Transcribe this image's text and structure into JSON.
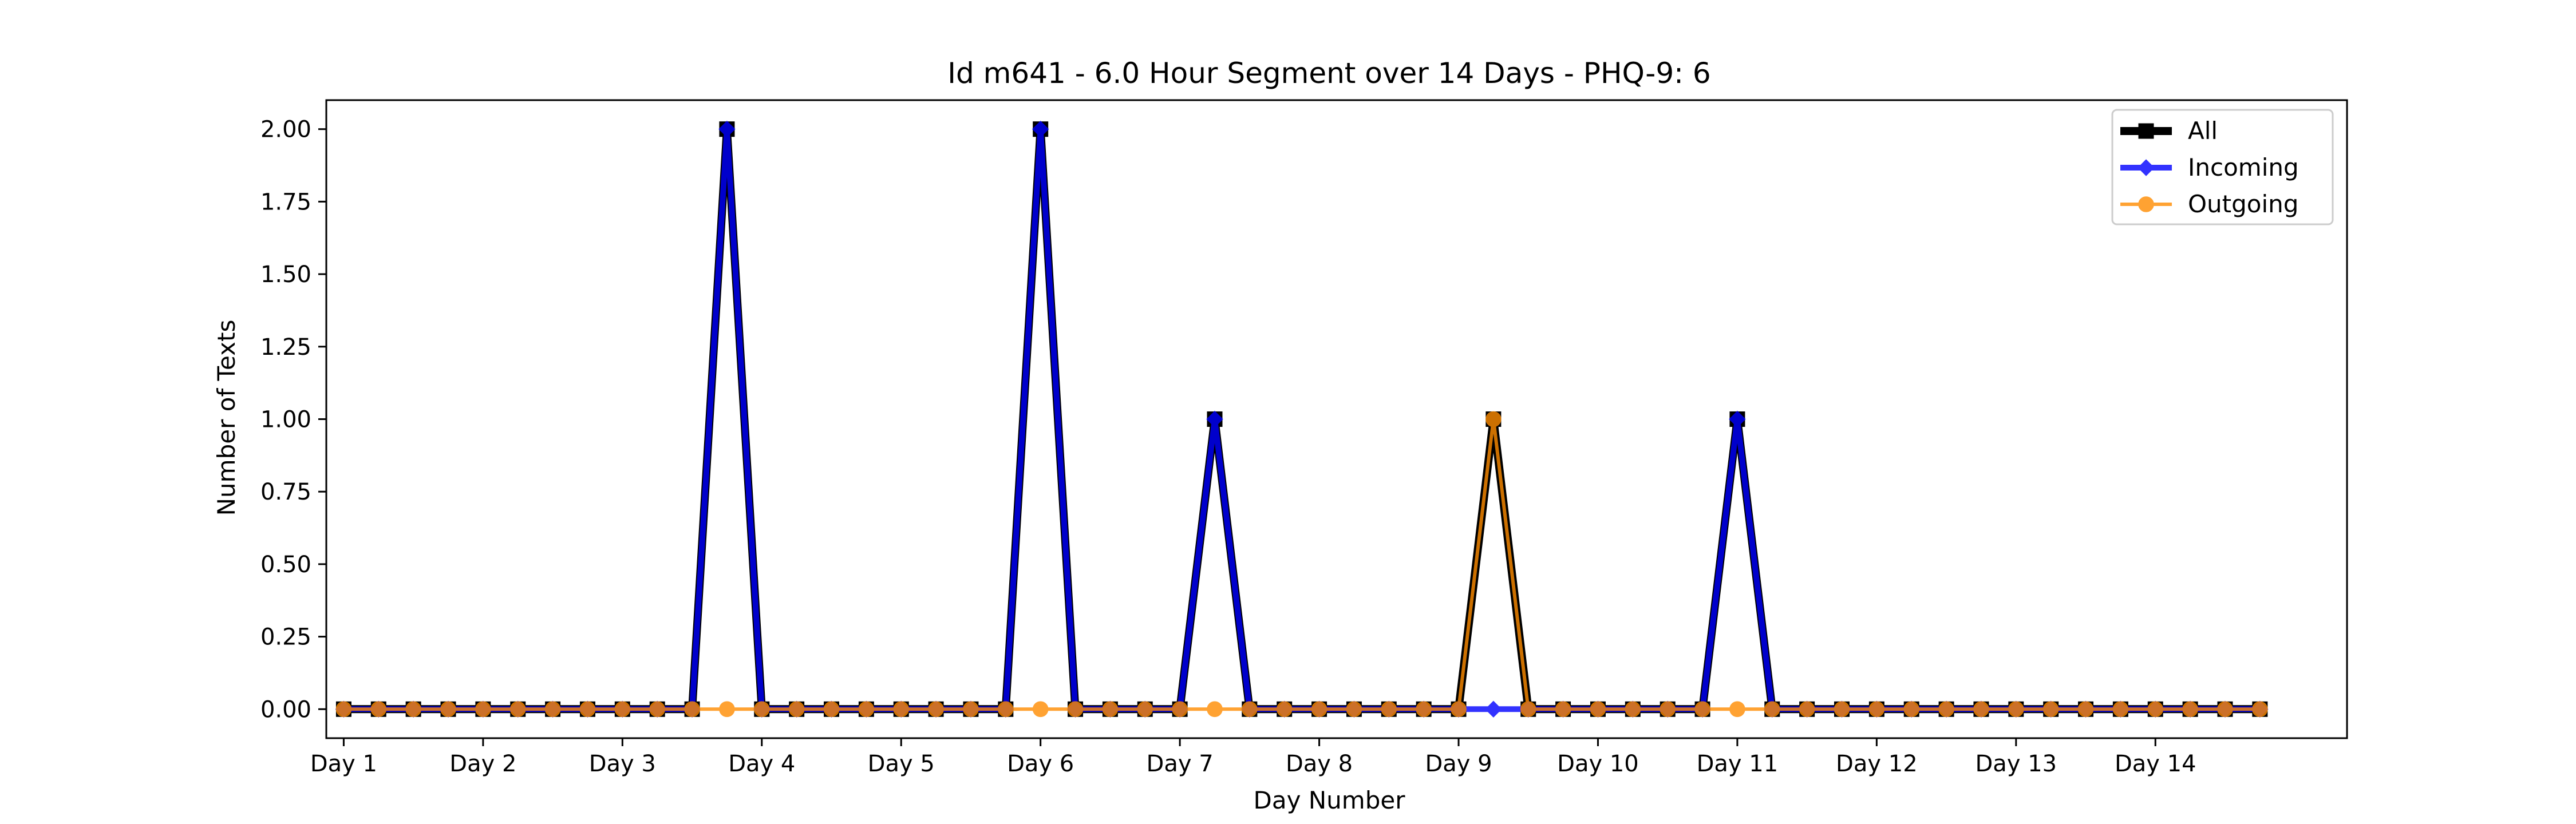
{
  "chart_data": {
    "type": "line",
    "title": "Id m641 - 6.0 Hour Segment over 14 Days - PHQ-9: 6",
    "xlabel": "Day Number",
    "ylabel": "Number of Texts",
    "ylim": [
      -0.1,
      2.1
    ],
    "yticks": [
      "0.00",
      "0.25",
      "0.50",
      "0.75",
      "1.00",
      "1.25",
      "1.50",
      "1.75",
      "2.00"
    ],
    "xlim": [
      -0.5,
      57.5
    ],
    "x_tick_positions": [
      0,
      4,
      8,
      12,
      16,
      20,
      24,
      28,
      32,
      36,
      40,
      44,
      48,
      52
    ],
    "x_tick_labels": [
      "Day 1",
      "Day 2",
      "Day 3",
      "Day 4",
      "Day 5",
      "Day 6",
      "Day 7",
      "Day 8",
      "Day 9",
      "Day 10",
      "Day 11",
      "Day 12",
      "Day 13",
      "Day 14"
    ],
    "x": [
      0,
      1,
      2,
      3,
      4,
      5,
      6,
      7,
      8,
      9,
      10,
      11,
      12,
      13,
      14,
      15,
      16,
      17,
      18,
      19,
      20,
      21,
      22,
      23,
      24,
      25,
      26,
      27,
      28,
      29,
      30,
      31,
      32,
      33,
      34,
      35,
      36,
      37,
      38,
      39,
      40,
      41,
      42,
      43,
      44,
      45,
      46,
      47,
      48,
      49,
      50,
      51,
      52,
      53,
      54,
      55
    ],
    "legend_position": "top-right",
    "grid": false,
    "series": [
      {
        "name": "All",
        "color": "#000000",
        "marker": "square",
        "values": [
          0,
          0,
          0,
          0,
          0,
          0,
          0,
          0,
          0,
          0,
          0,
          2,
          0,
          0,
          0,
          0,
          0,
          0,
          0,
          0,
          2,
          0,
          0,
          0,
          0,
          1,
          0,
          0,
          0,
          0,
          0,
          0,
          0,
          1,
          0,
          0,
          0,
          0,
          0,
          0,
          1,
          0,
          0,
          0,
          0,
          0,
          0,
          0,
          0,
          0,
          0,
          0,
          0,
          0,
          0,
          0
        ]
      },
      {
        "name": "Incoming",
        "color": "#0000ff",
        "marker": "diamond",
        "values": [
          0,
          0,
          0,
          0,
          0,
          0,
          0,
          0,
          0,
          0,
          0,
          2,
          0,
          0,
          0,
          0,
          0,
          0,
          0,
          0,
          2,
          0,
          0,
          0,
          0,
          1,
          0,
          0,
          0,
          0,
          0,
          0,
          0,
          0,
          0,
          0,
          0,
          0,
          0,
          0,
          1,
          0,
          0,
          0,
          0,
          0,
          0,
          0,
          0,
          0,
          0,
          0,
          0,
          0,
          0,
          0
        ]
      },
      {
        "name": "Outgoing",
        "color": "#ff8c00",
        "marker": "circle",
        "values": [
          0,
          0,
          0,
          0,
          0,
          0,
          0,
          0,
          0,
          0,
          0,
          0,
          0,
          0,
          0,
          0,
          0,
          0,
          0,
          0,
          0,
          0,
          0,
          0,
          0,
          0,
          0,
          0,
          0,
          0,
          0,
          0,
          0,
          1,
          0,
          0,
          0,
          0,
          0,
          0,
          0,
          0,
          0,
          0,
          0,
          0,
          0,
          0,
          0,
          0,
          0,
          0,
          0,
          0,
          0,
          0
        ]
      }
    ]
  }
}
